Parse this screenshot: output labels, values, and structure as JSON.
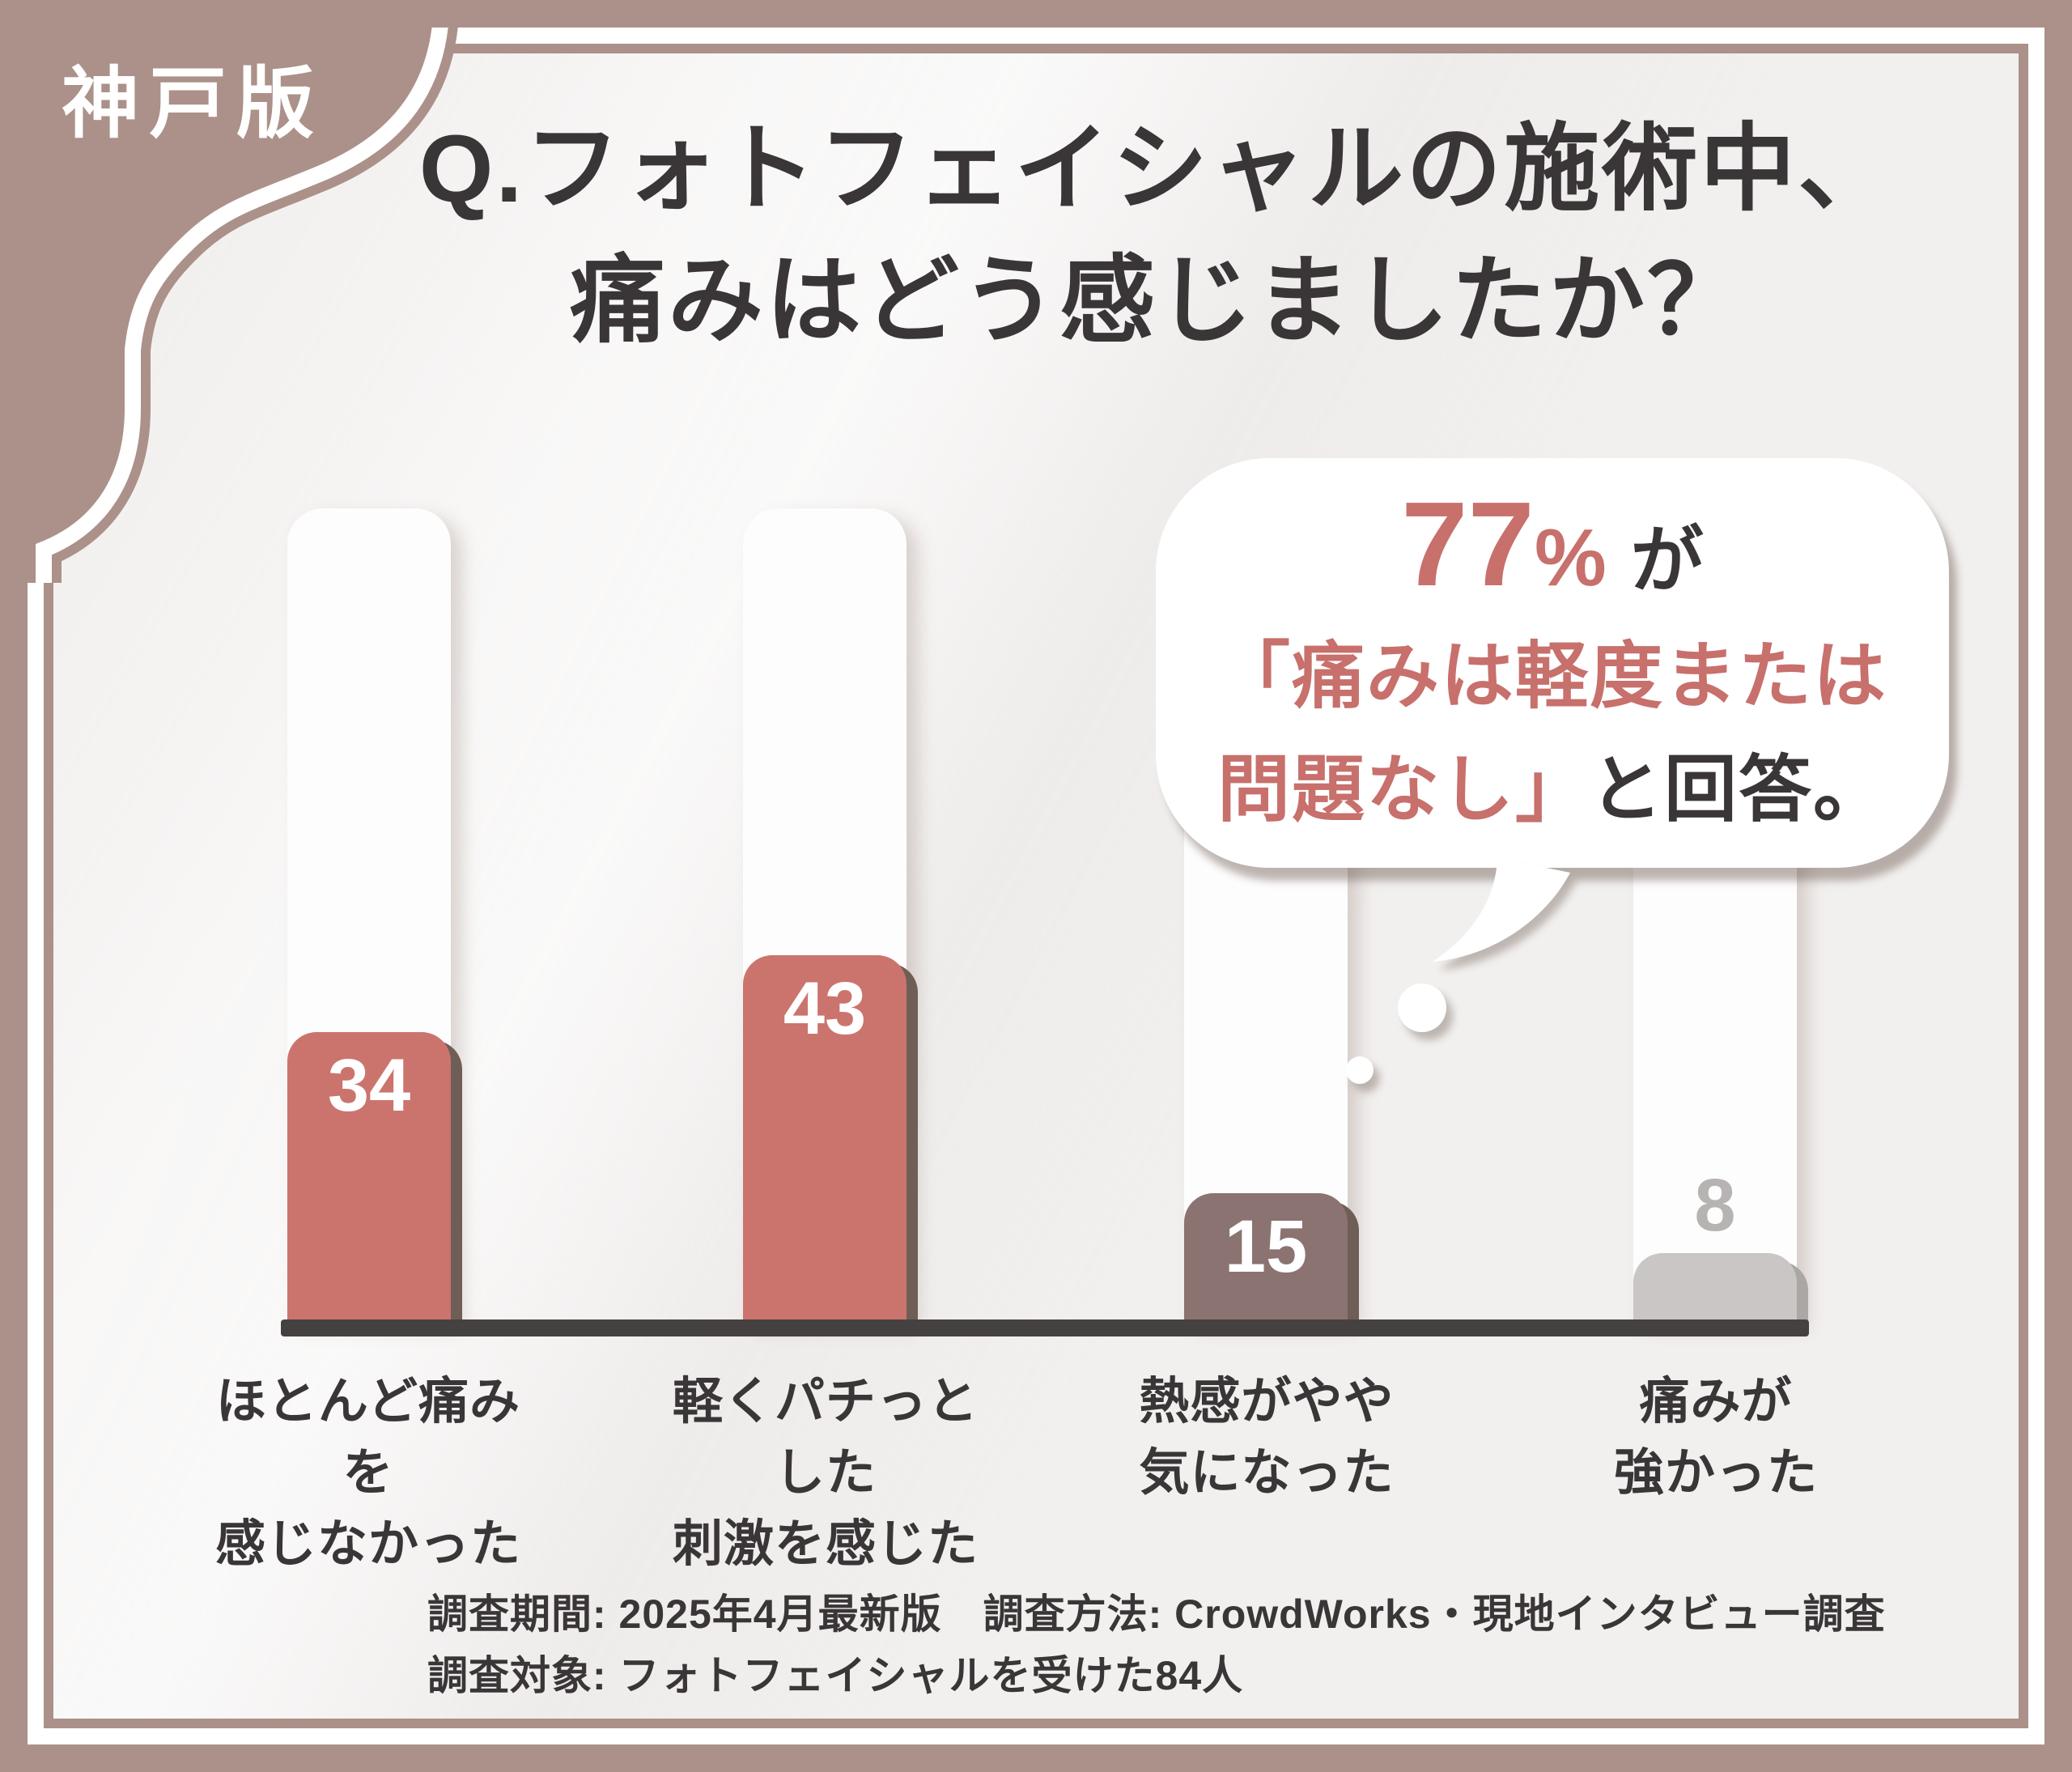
{
  "badge": {
    "label": "神戸版"
  },
  "title": {
    "line1": "Q.フォトフェイシャルの施術中、",
    "line2": "痛みはどう感じましたか？"
  },
  "bubble": {
    "percent": "77",
    "percent_sign": "%",
    "percent_suffix": "が",
    "line2": "「痛みは軽度または",
    "line3_highlight": "問題なし」",
    "line3_rest": "と回答。"
  },
  "chart_data": {
    "type": "bar",
    "categories": [
      "ほとんど痛みを感じなかった",
      "軽くパチっとした刺激を感じた",
      "熱感がやや気になった",
      "痛みが強かった"
    ],
    "values": [
      34,
      43,
      15,
      8
    ],
    "title": "Q.フォトフェイシャルの施術中、痛みはどう感じましたか？",
    "annotation": "77%が「痛みは軽度または問題なし」と回答。",
    "xlabel": "",
    "ylabel": "",
    "ylim": [
      0,
      96
    ],
    "grid": false,
    "legend": "none",
    "value_labels_shown": true,
    "bar_colors": [
      "#cb746e",
      "#cb746e",
      "#8a7370",
      "#c9c6c5"
    ]
  },
  "bars": [
    {
      "label1": "ほとんど痛みを",
      "label2": "感じなかった",
      "color": "#cb746e",
      "shadow": "#6f5e56",
      "value_color": "#ffffff"
    },
    {
      "label1": "軽くパチっとした",
      "label2": "刺激を感じた",
      "color": "#cb746e",
      "shadow": "#6f5e56",
      "value_color": "#ffffff"
    },
    {
      "label1": "熱感がやや",
      "label2": "気になった",
      "color": "#8a7370",
      "shadow": "#6f5e56",
      "value_color": "#ffffff"
    },
    {
      "label1": "痛みが",
      "label2": "強かった",
      "color": "#c9c6c5",
      "shadow": "#aba7a5",
      "value_color": "#b7b3b2"
    }
  ],
  "footer": {
    "line1": "調査期間: 2025年4月最新版　調査方法: CrowdWorks・現地インタビュー調査",
    "line2": "調査対象: フォトフェイシャルを受けた84人"
  },
  "colors": {
    "frame_brown": "#ab9189",
    "content_bg": "#f2f0ef",
    "text_dark": "#3a3637",
    "accent_pink": "#c7706c",
    "axis": "#464141",
    "track_white": "#fdfdfd"
  }
}
